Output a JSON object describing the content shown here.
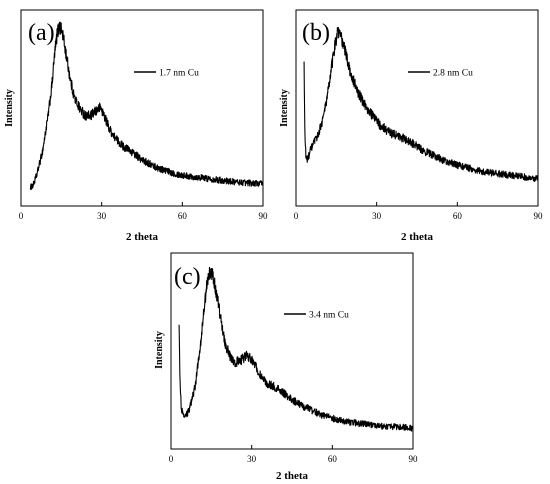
{
  "chart_data": [
    {
      "type": "line",
      "panel_label": "(a)",
      "xlabel": "2 theta",
      "ylabel": "Intensity",
      "xlim": [
        0,
        90
      ],
      "xticks": [
        0,
        30,
        60,
        90
      ],
      "y_tick_labels": false,
      "grid": false,
      "legend_position": "top-right",
      "series": [
        {
          "name": "1.7 nm Cu",
          "x": [
            3.5,
            4.5,
            6,
            8,
            10,
            11.5,
            12.5,
            13.5,
            14.5,
            15.5,
            17,
            18.5,
            20,
            22,
            24,
            26,
            28,
            29.5,
            31,
            33,
            35,
            38,
            41,
            45,
            50,
            55,
            60,
            65,
            70,
            75,
            80,
            85,
            90
          ],
          "y": [
            0.04,
            0.05,
            0.12,
            0.25,
            0.45,
            0.64,
            0.82,
            0.95,
            0.99,
            0.94,
            0.8,
            0.66,
            0.56,
            0.5,
            0.46,
            0.46,
            0.49,
            0.51,
            0.46,
            0.38,
            0.33,
            0.28,
            0.25,
            0.2,
            0.16,
            0.13,
            0.11,
            0.1,
            0.09,
            0.08,
            0.07,
            0.065,
            0.06
          ],
          "color": "#000000"
        }
      ]
    },
    {
      "type": "line",
      "panel_label": "(b)",
      "xlabel": "2 theta",
      "ylabel": "Intensity",
      "xlim": [
        0,
        90
      ],
      "xticks": [
        0,
        30,
        60,
        90
      ],
      "y_tick_labels": false,
      "grid": false,
      "legend_position": "top-right",
      "series": [
        {
          "name": "2.8 nm Cu",
          "x": [
            3,
            3.3,
            3.7,
            4.3,
            5,
            6,
            8,
            10,
            11.5,
            13,
            14.5,
            15.5,
            16.5,
            18,
            19.5,
            21,
            23,
            25,
            28,
            31,
            35,
            38,
            41,
            44,
            48,
            52,
            56,
            60,
            65,
            70,
            75,
            80,
            85,
            90
          ],
          "y": [
            0.75,
            0.35,
            0.22,
            0.2,
            0.24,
            0.28,
            0.34,
            0.44,
            0.56,
            0.72,
            0.88,
            0.95,
            0.93,
            0.86,
            0.76,
            0.68,
            0.6,
            0.54,
            0.47,
            0.41,
            0.36,
            0.34,
            0.32,
            0.29,
            0.25,
            0.22,
            0.19,
            0.17,
            0.15,
            0.13,
            0.12,
            0.11,
            0.1,
            0.09
          ],
          "color": "#000000"
        }
      ]
    },
    {
      "type": "line",
      "panel_label": "(c)",
      "xlabel": "2 theta",
      "ylabel": "Intensity",
      "xlim": [
        0,
        90
      ],
      "xticks": [
        0,
        30,
        60,
        90
      ],
      "y_tick_labels": false,
      "grid": false,
      "legend_position": "top-right",
      "series": [
        {
          "name": "3.4 nm Cu",
          "x": [
            3,
            3.3,
            3.8,
            4.5,
            5.5,
            7,
            9,
            11,
            12.5,
            13.5,
            14.5,
            15.5,
            17,
            18.5,
            20,
            22,
            24,
            26,
            28,
            30,
            32,
            34,
            36,
            38,
            41,
            44,
            48,
            52,
            56,
            60,
            65,
            70,
            75,
            80,
            85,
            90
          ],
          "y": [
            0.68,
            0.35,
            0.18,
            0.12,
            0.12,
            0.17,
            0.3,
            0.55,
            0.78,
            0.92,
            0.97,
            0.95,
            0.84,
            0.7,
            0.56,
            0.47,
            0.44,
            0.45,
            0.48,
            0.46,
            0.4,
            0.34,
            0.31,
            0.3,
            0.27,
            0.23,
            0.19,
            0.16,
            0.13,
            0.11,
            0.09,
            0.08,
            0.07,
            0.06,
            0.06,
            0.05
          ],
          "color": "#000000"
        }
      ]
    }
  ]
}
